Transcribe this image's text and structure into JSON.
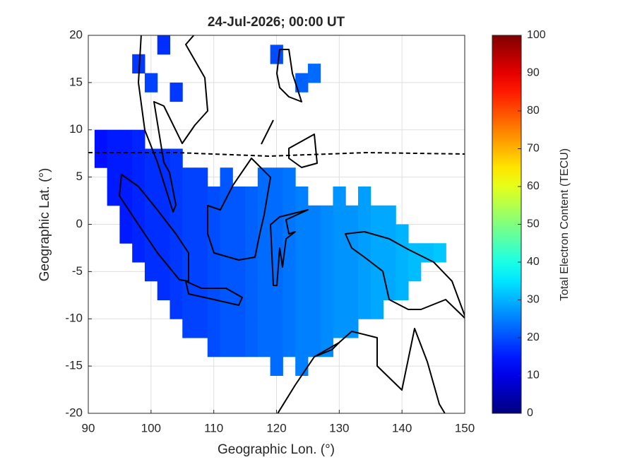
{
  "chart_data": {
    "type": "heatmap",
    "title": "24-Jul-2026; 00:00 UT",
    "x_label": "Geographic Lon. (°)",
    "y_label": "Geographic Lat. (°)",
    "xlim": [
      90,
      150
    ],
    "ylim": [
      -20,
      20
    ],
    "xticks": [
      90,
      100,
      110,
      120,
      130,
      140,
      150
    ],
    "yticks": [
      -20,
      -15,
      -10,
      -5,
      0,
      5,
      10,
      15,
      20
    ],
    "grid": true,
    "colorbar": {
      "label": "Total Electron Content (TECU)",
      "lim": [
        0,
        100
      ],
      "ticks": [
        0,
        10,
        20,
        30,
        40,
        50,
        60,
        70,
        80,
        90,
        100
      ],
      "colormap": "jet"
    },
    "x": [
      92,
      94,
      96,
      98,
      92,
      94,
      96,
      98,
      100,
      102,
      104,
      94,
      96,
      98,
      100,
      102,
      104,
      106,
      108,
      112,
      118,
      120,
      122,
      94,
      96,
      98,
      100,
      102,
      104,
      106,
      108,
      110,
      112,
      114,
      116,
      118,
      120,
      122,
      124,
      130,
      134,
      96,
      98,
      100,
      102,
      104,
      106,
      108,
      110,
      112,
      114,
      116,
      118,
      120,
      122,
      124,
      126,
      128,
      130,
      132,
      134,
      136,
      138,
      96,
      98,
      100,
      102,
      104,
      106,
      108,
      110,
      112,
      114,
      116,
      118,
      120,
      122,
      124,
      126,
      128,
      130,
      132,
      134,
      136,
      138,
      140,
      98,
      100,
      102,
      104,
      106,
      108,
      110,
      112,
      114,
      116,
      118,
      120,
      122,
      124,
      126,
      128,
      130,
      132,
      134,
      136,
      138,
      140,
      142,
      144,
      146,
      100,
      102,
      104,
      106,
      108,
      110,
      112,
      114,
      116,
      118,
      120,
      122,
      124,
      126,
      128,
      130,
      132,
      134,
      136,
      138,
      140,
      142,
      102,
      104,
      106,
      108,
      110,
      112,
      114,
      116,
      118,
      120,
      122,
      124,
      126,
      128,
      130,
      132,
      134,
      136,
      138,
      140,
      104,
      106,
      108,
      110,
      112,
      114,
      116,
      118,
      120,
      122,
      124,
      126,
      128,
      130,
      132,
      134,
      136,
      106,
      108,
      110,
      112,
      114,
      116,
      118,
      120,
      122,
      124,
      126,
      128,
      130,
      132,
      110,
      112,
      114,
      116,
      118,
      120,
      122,
      124,
      126,
      128,
      120,
      124,
      98,
      100,
      102,
      104,
      120,
      124,
      126
    ],
    "y": [
      9,
      9,
      9,
      9,
      7,
      7,
      7,
      7,
      7,
      7,
      7,
      5,
      5,
      5,
      5,
      5,
      5,
      5,
      5,
      5,
      5,
      5,
      5,
      3,
      3,
      3,
      3,
      3,
      3,
      3,
      3,
      3,
      3,
      3,
      3,
      3,
      3,
      3,
      3,
      3,
      3,
      1,
      1,
      1,
      1,
      1,
      1,
      1,
      1,
      1,
      1,
      1,
      1,
      1,
      1,
      1,
      1,
      1,
      1,
      1,
      1,
      1,
      1,
      -1,
      -1,
      -1,
      -1,
      -1,
      -1,
      -1,
      -1,
      -1,
      -1,
      -1,
      -1,
      -1,
      -1,
      -1,
      -1,
      -1,
      -1,
      -1,
      -1,
      -1,
      -1,
      -1,
      -3,
      -3,
      -3,
      -3,
      -3,
      -3,
      -3,
      -3,
      -3,
      -3,
      -3,
      -3,
      -3,
      -3,
      -3,
      -3,
      -3,
      -3,
      -3,
      -3,
      -3,
      -3,
      -3,
      -3,
      -3,
      -5,
      -5,
      -5,
      -5,
      -5,
      -5,
      -5,
      -5,
      -5,
      -5,
      -5,
      -5,
      -5,
      -5,
      -5,
      -5,
      -5,
      -5,
      -5,
      -5,
      -5,
      -5,
      -7,
      -7,
      -7,
      -7,
      -7,
      -7,
      -7,
      -7,
      -7,
      -7,
      -7,
      -7,
      -7,
      -7,
      -7,
      -7,
      -7,
      -7,
      -7,
      -7,
      -9,
      -9,
      -9,
      -9,
      -9,
      -9,
      -9,
      -9,
      -9,
      -9,
      -9,
      -9,
      -9,
      -9,
      -9,
      -9,
      -9,
      -11,
      -11,
      -11,
      -11,
      -11,
      -11,
      -11,
      -11,
      -11,
      -11,
      -11,
      -11,
      -11,
      -11,
      -13,
      -13,
      -13,
      -13,
      -13,
      -13,
      -13,
      -13,
      -13,
      -13,
      -15,
      -15,
      17,
      15,
      19,
      14,
      18,
      15,
      16
    ],
    "values": [
      14,
      15,
      15,
      16,
      14,
      15,
      15,
      16,
      17,
      17,
      18,
      15,
      15,
      16,
      17,
      17,
      18,
      19,
      19,
      21,
      23,
      23,
      24,
      15,
      15,
      16,
      17,
      17,
      18,
      19,
      19,
      20,
      21,
      21,
      22,
      23,
      23,
      24,
      25,
      27,
      28,
      15,
      16,
      17,
      17,
      18,
      19,
      19,
      20,
      21,
      21,
      22,
      23,
      23,
      24,
      25,
      25,
      26,
      27,
      27,
      28,
      29,
      29,
      15,
      16,
      17,
      17,
      18,
      19,
      19,
      20,
      21,
      21,
      22,
      23,
      23,
      24,
      25,
      25,
      26,
      27,
      27,
      28,
      29,
      29,
      30,
      16,
      17,
      17,
      18,
      19,
      19,
      20,
      21,
      21,
      22,
      23,
      23,
      24,
      25,
      25,
      26,
      27,
      27,
      28,
      29,
      29,
      30,
      31,
      31,
      32,
      17,
      17,
      18,
      19,
      19,
      20,
      21,
      21,
      22,
      23,
      23,
      24,
      25,
      25,
      26,
      27,
      27,
      28,
      29,
      29,
      30,
      31,
      17,
      18,
      19,
      19,
      20,
      21,
      21,
      22,
      23,
      23,
      24,
      25,
      25,
      26,
      27,
      27,
      28,
      29,
      29,
      30,
      18,
      19,
      19,
      20,
      21,
      21,
      22,
      23,
      23,
      24,
      25,
      25,
      26,
      27,
      27,
      28,
      29,
      19,
      19,
      20,
      21,
      21,
      22,
      23,
      23,
      24,
      25,
      25,
      26,
      27,
      27,
      20,
      21,
      21,
      22,
      23,
      23,
      24,
      25,
      25,
      26,
      23,
      25,
      18,
      19,
      17,
      18,
      20,
      22,
      23
    ]
  }
}
